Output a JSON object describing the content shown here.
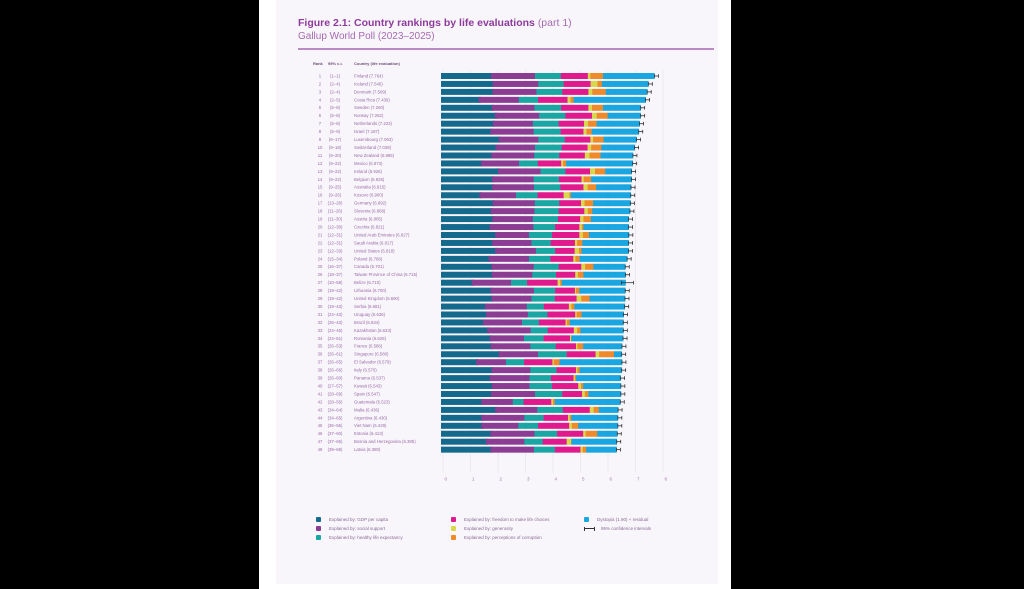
{
  "figure": {
    "title": "Figure 2.1: Country rankings by life evaluations",
    "title_suffix": "(part 1)",
    "subtitle": "Gallup World Poll (2023–2025)",
    "col_rank": "Rank",
    "col_ci": "95% c.i.",
    "col_country": "Country (life evaluation)"
  },
  "colors": {
    "gdp": "#146a8c",
    "social": "#8b3d93",
    "health": "#1aa7a4",
    "freedom": "#e0198c",
    "generosity": "#d8d84a",
    "corruption": "#ef8a2a",
    "dystopia": "#1aa6e0",
    "ci": "#333333"
  },
  "chart_data": {
    "type": "bar",
    "orientation": "horizontal",
    "stacked": true,
    "title": "Figure 2.1: Country rankings by life evaluations (part 1)",
    "subtitle": "Gallup World Poll (2023–2025)",
    "xlabel": "",
    "ylabel": "",
    "xlim": [
      0,
      8
    ],
    "xticks": [
      0,
      1,
      2,
      3,
      4,
      5,
      6,
      7,
      8
    ],
    "grid": true,
    "legend_position": "bottom",
    "series_names": [
      "Explained by: GDP per capita",
      "Explained by: social support",
      "Explained by: healthy life expectancy",
      "Explained by: freedom to make life choices",
      "Explained by: generosity",
      "Explained by: perceptions of corruption",
      "Dystopia (1.90) + residual"
    ],
    "ci_label": "95% confidence intervals",
    "rows": [
      {
        "rank": "1",
        "ci": "(1–1)",
        "country": "Finland",
        "score": 7.764,
        "seg": [
          1.82,
          1.6,
          0.94,
          0.98,
          0.09,
          0.46,
          1.87
        ]
      },
      {
        "rank": "2",
        "ci": "(2–4)",
        "country": "Iceland",
        "score": 7.54,
        "seg": [
          1.88,
          1.66,
          0.92,
          0.98,
          0.25,
          0.16,
          1.69
        ]
      },
      {
        "rank": "3",
        "ci": "(2–4)",
        "country": "Denmark",
        "score": 7.509,
        "seg": [
          1.87,
          1.6,
          0.94,
          0.95,
          0.14,
          0.49,
          1.51
        ]
      },
      {
        "rank": "4",
        "ci": "(2–5)",
        "country": "Costa Rica",
        "score": 7.439,
        "seg": [
          1.37,
          1.46,
          0.7,
          1.07,
          0.11,
          0.11,
          2.62
        ]
      },
      {
        "rank": "5",
        "ci": "(5–8)",
        "country": "Sweden",
        "score": 7.26,
        "seg": [
          1.85,
          1.55,
          0.97,
          0.99,
          0.13,
          0.4,
          1.37
        ]
      },
      {
        "rank": "6",
        "ci": "(5–8)",
        "country": "Norway",
        "score": 7.262,
        "seg": [
          1.96,
          1.61,
          0.95,
          0.97,
          0.17,
          0.4,
          1.2
        ]
      },
      {
        "rank": "7",
        "ci": "(5–8)",
        "country": "Netherlands",
        "score": 7.223,
        "seg": [
          1.89,
          1.45,
          0.94,
          0.92,
          0.15,
          0.31,
          1.56
        ]
      },
      {
        "rank": "8",
        "ci": "(5–9)",
        "country": "Israel",
        "score": 7.187,
        "seg": [
          1.8,
          1.57,
          0.98,
          0.83,
          0.11,
          0.19,
          1.71
        ]
      },
      {
        "rank": "9",
        "ci": "(6–17)",
        "country": "Luxembourg",
        "score": 7.063,
        "seg": [
          2.1,
          1.44,
          0.96,
          0.93,
          0.1,
          0.38,
          1.2
        ]
      },
      {
        "rank": "10",
        "ci": "(9–18)",
        "country": "Switzerland",
        "score": 7.038,
        "seg": [
          1.98,
          1.44,
          0.97,
          0.94,
          0.13,
          0.37,
          1.21
        ]
      },
      {
        "rank": "11",
        "ci": "(9–20)",
        "country": "New Zealand",
        "score": 6.985,
        "seg": [
          1.83,
          1.56,
          0.91,
          0.93,
          0.17,
          0.4,
          1.18
        ]
      },
      {
        "rank": "12",
        "ci": "(9–22)",
        "country": "Mexico",
        "score": 6.973,
        "seg": [
          1.46,
          1.38,
          0.68,
          0.85,
          0.07,
          0.11,
          2.42
        ]
      },
      {
        "rank": "13",
        "ci": "(9–22)",
        "country": "Ireland",
        "score": 6.926,
        "seg": [
          2.07,
          1.55,
          0.9,
          0.9,
          0.18,
          0.37,
          0.96
        ]
      },
      {
        "rank": "14",
        "ci": "(9–22)",
        "country": "Belgium",
        "score": 6.926,
        "seg": [
          1.86,
          1.51,
          0.92,
          0.82,
          0.08,
          0.27,
          1.47
        ]
      },
      {
        "rank": "15",
        "ci": "(9–25)",
        "country": "Australia",
        "score": 6.915,
        "seg": [
          1.86,
          1.52,
          0.96,
          0.84,
          0.15,
          0.31,
          1.27
        ]
      },
      {
        "rank": "16",
        "ci": "(9–26)",
        "country": "Kosovo",
        "score": 6.9,
        "seg": [
          1.4,
          1.33,
          0.78,
          0.95,
          0.21,
          0.05,
          2.18
        ]
      },
      {
        "rank": "17",
        "ci": "(13–26)",
        "country": "Germany",
        "score": 6.892,
        "seg": [
          1.88,
          1.53,
          0.89,
          0.79,
          0.13,
          0.31,
          1.36
        ]
      },
      {
        "rank": "18",
        "ci": "(11–26)",
        "country": "Slovenia",
        "score": 6.868,
        "seg": [
          1.81,
          1.59,
          0.88,
          0.93,
          0.13,
          0.16,
          1.37
        ]
      },
      {
        "rank": "19",
        "ci": "(11–30)",
        "country": "Austria",
        "score": 6.805,
        "seg": [
          1.87,
          1.47,
          0.91,
          0.81,
          0.12,
          0.27,
          1.37
        ]
      },
      {
        "rank": "20",
        "ci": "(12–30)",
        "country": "Czechia",
        "score": 6.821,
        "seg": [
          1.77,
          1.59,
          0.79,
          0.88,
          0.09,
          0.06,
          1.64
        ]
      },
      {
        "rank": "21",
        "ci": "(12–31)",
        "country": "United Arab Emirates",
        "score": 6.827,
        "seg": [
          1.97,
          1.23,
          0.84,
          0.99,
          0.13,
          0.22,
          1.45
        ]
      },
      {
        "rank": "22",
        "ci": "(12–31)",
        "country": "Saudi Arabia",
        "score": 6.817,
        "seg": [
          1.86,
          1.43,
          0.7,
          0.88,
          0.08,
          0.19,
          1.68
        ]
      },
      {
        "rank": "23",
        "ci": "(12–33)",
        "country": "United States",
        "score": 6.818,
        "seg": [
          1.97,
          1.48,
          0.7,
          0.71,
          0.16,
          0.09,
          1.71
        ]
      },
      {
        "rank": "24",
        "ci": "(15–34)",
        "country": "Poland",
        "score": 6.768,
        "seg": [
          1.73,
          1.47,
          0.78,
          0.83,
          0.08,
          0.15,
          1.73
        ]
      },
      {
        "rank": "25",
        "ci": "(16–37)",
        "country": "Canada",
        "score": 6.701,
        "seg": [
          1.84,
          1.53,
          0.91,
          0.82,
          0.14,
          0.3,
          1.16
        ]
      },
      {
        "rank": "26",
        "ci": "(18–37)",
        "country": "Taiwan Province of China",
        "score": 6.715,
        "seg": [
          1.85,
          1.47,
          0.86,
          0.7,
          0.1,
          0.2,
          1.53
        ]
      },
      {
        "rank": "27",
        "ci": "(10–58)",
        "country": "Belize",
        "score": 6.71,
        "seg": [
          1.12,
          1.43,
          0.58,
          1.11,
          0.09,
          0.06,
          2.32
        ]
      },
      {
        "rank": "28",
        "ci": "(19–42)",
        "country": "Lithuania",
        "score": 6.7,
        "seg": [
          1.8,
          1.58,
          0.77,
          0.72,
          0.04,
          0.12,
          1.67
        ]
      },
      {
        "rank": "29",
        "ci": "(19–42)",
        "country": "United Kingdom",
        "score": 6.69,
        "seg": [
          1.84,
          1.45,
          0.85,
          0.79,
          0.17,
          0.3,
          1.29
        ]
      },
      {
        "rank": "30",
        "ci": "(19–43)",
        "country": "Serbia",
        "score": 6.681,
        "seg": [
          1.6,
          1.52,
          0.62,
          0.91,
          0.09,
          0.11,
          1.83
        ]
      },
      {
        "rank": "31",
        "ci": "(24–43)",
        "country": "Uruguay",
        "score": 6.636,
        "seg": [
          1.64,
          1.52,
          0.71,
          1.01,
          0.05,
          0.18,
          1.53
        ]
      },
      {
        "rank": "32",
        "ci": "(26–43)",
        "country": "Brazil",
        "score": 6.634,
        "seg": [
          1.53,
          1.42,
          0.61,
          0.97,
          0.05,
          0.1,
          1.95
        ]
      },
      {
        "rank": "33",
        "ci": "(24–45)",
        "country": "Kazakhstan",
        "score": 6.633,
        "seg": [
          1.68,
          1.58,
          0.62,
          0.95,
          0.12,
          0.12,
          1.56
        ]
      },
      {
        "rank": "34",
        "ci": "(24–51)",
        "country": "Romania",
        "score": 6.629,
        "seg": [
          1.77,
          1.25,
          0.71,
          0.96,
          0.04,
          0.01,
          1.88
        ]
      },
      {
        "rank": "35",
        "ci": "(26–53)",
        "country": "France",
        "score": 6.586,
        "seg": [
          1.81,
          1.44,
          0.92,
          0.74,
          0.05,
          0.21,
          1.41
        ]
      },
      {
        "rank": "36",
        "ci": "(26–61)",
        "country": "Singapore",
        "score": 6.58,
        "seg": [
          2.1,
          1.43,
          1.04,
          1.05,
          0.13,
          0.54,
          0.28
        ]
      },
      {
        "rank": "37",
        "ci": "(26–65)",
        "country": "El Salvador",
        "score": 6.579,
        "seg": [
          1.28,
          1.08,
          0.66,
          1.03,
          0.05,
          0.21,
          2.27
        ]
      },
      {
        "rank": "38",
        "ci": "(26–66)",
        "country": "Italy",
        "score": 6.57,
        "seg": [
          1.84,
          1.41,
          0.95,
          0.71,
          0.05,
          0.08,
          1.53
        ]
      },
      {
        "rank": "39",
        "ci": "(26–60)",
        "country": "Panama",
        "score": 6.537,
        "seg": [
          1.77,
          1.45,
          0.78,
          0.82,
          0.05,
          0.04,
          1.62
        ]
      },
      {
        "rank": "40",
        "ci": "(27–57)",
        "country": "Kuwait",
        "score": 6.543,
        "seg": [
          1.85,
          1.37,
          0.82,
          0.95,
          0.1,
          0.08,
          1.37
        ]
      },
      {
        "rank": "41",
        "ci": "(28–69)",
        "country": "Spain",
        "score": 6.547,
        "seg": [
          1.82,
          1.6,
          0.99,
          0.72,
          0.1,
          0.13,
          1.18
        ]
      },
      {
        "rank": "42",
        "ci": "(28–56)",
        "country": "Guatemala",
        "score": 6.523,
        "seg": [
          1.47,
          1.14,
          0.39,
          1.01,
          0.06,
          0.07,
          2.38
        ]
      },
      {
        "rank": "43",
        "ci": "(34–64)",
        "country": "Malta",
        "score": 6.436,
        "seg": [
          1.97,
          1.53,
          0.93,
          0.98,
          0.14,
          0.19,
          0.7
        ]
      },
      {
        "rank": "44",
        "ci": "(34–65)",
        "country": "Argentina",
        "score": 6.43,
        "seg": [
          1.47,
          1.56,
          0.7,
          0.89,
          0.06,
          0.06,
          1.69
        ]
      },
      {
        "rank": "45",
        "ci": "(36–55)",
        "country": "Viet Nam",
        "score": 6.428,
        "seg": [
          1.47,
          1.34,
          0.72,
          1.13,
          0.1,
          0.23,
          1.44
        ]
      },
      {
        "rank": "46",
        "ci": "(37–60)",
        "country": "Estonia",
        "score": 6.413,
        "seg": [
          1.8,
          1.6,
          0.82,
          0.95,
          0.09,
          0.42,
          0.73
        ]
      },
      {
        "rank": "47",
        "ci": "(37–66)",
        "country": "Bosnia and Herzegovina",
        "score": 6.385,
        "seg": [
          1.63,
          1.4,
          0.67,
          0.87,
          0.16,
          0.01,
          1.65
        ]
      },
      {
        "rank": "48",
        "ci": "(39–68)",
        "country": "Latvia",
        "score": 6.38,
        "seg": [
          1.8,
          1.58,
          0.76,
          0.93,
          0.08,
          0.13,
          1.1
        ]
      }
    ]
  },
  "legend": [
    {
      "label": "Explained by: GDP per capita",
      "key": "gdp"
    },
    {
      "label": "Explained by: social support",
      "key": "social"
    },
    {
      "label": "Explained by: healthy life expectancy",
      "key": "health"
    },
    {
      "label": "Explained by: freedom to make life choices",
      "key": "freedom"
    },
    {
      "label": "Explained by: generosity",
      "key": "generosity"
    },
    {
      "label": "Explained by: perceptions of corruption",
      "key": "corruption"
    },
    {
      "label": "Dystopia (1.90) + residual",
      "key": "dystopia"
    },
    {
      "label": "95% confidence intervals",
      "key": "ci"
    }
  ]
}
